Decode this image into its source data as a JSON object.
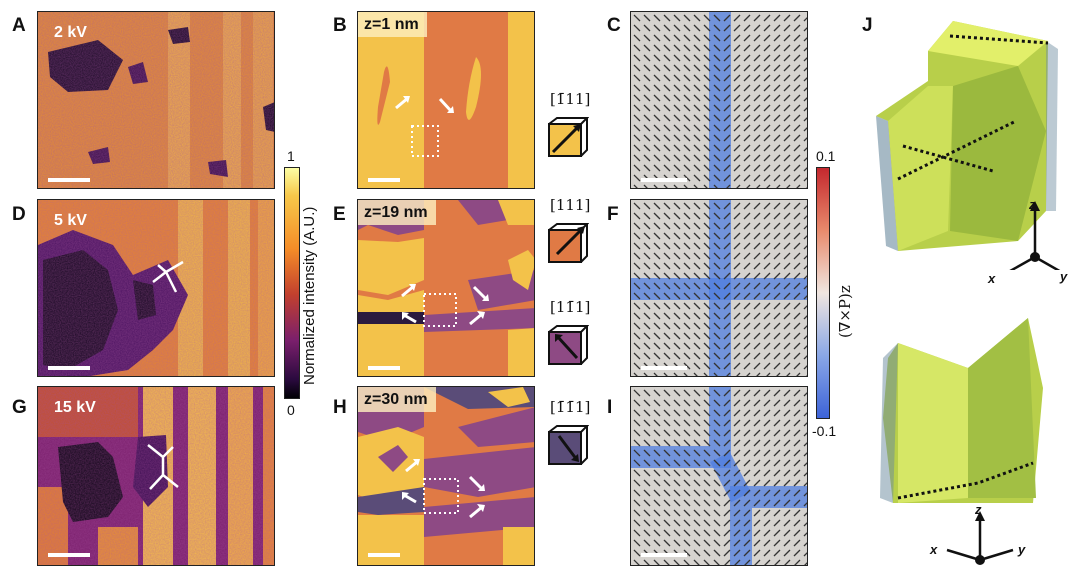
{
  "panels": {
    "A": {
      "label": "A",
      "tag": "2 kV"
    },
    "B": {
      "label": "B",
      "tag": "z=1 nm"
    },
    "C": {
      "label": "C"
    },
    "D": {
      "label": "D",
      "tag": "5 kV"
    },
    "E": {
      "label": "E",
      "tag": "z=19 nm"
    },
    "F": {
      "label": "F"
    },
    "G": {
      "label": "G",
      "tag": "15 kV"
    },
    "H": {
      "label": "H",
      "tag": "z=30 nm"
    },
    "I": {
      "label": "I"
    },
    "J": {
      "label": "J"
    }
  },
  "intensity_colorbar": {
    "title": "Normalized intensity (A.U.)",
    "max": "1",
    "min": "0"
  },
  "curl_colorbar": {
    "title": "(∇×P)z",
    "max": "0.1",
    "min": "-0.1"
  },
  "directions": [
    {
      "label": "[1̅ 11]",
      "display": "[1̄11]",
      "color": "#f3c24a"
    },
    {
      "label": "[111]",
      "display": "[111]",
      "color": "#e07a45"
    },
    {
      "label": "[11̅ 1]",
      "display": "[11̄1]",
      "color": "#8e4a84"
    },
    {
      "label": "[1̄1̄1]",
      "display": "[1̄1̄1]",
      "color": "#5a4c78"
    }
  ],
  "axes": {
    "x": "x",
    "y": "y",
    "z": "z"
  },
  "colors": {
    "inferno_dark": "#1a0b24",
    "inferno_purple": "#6b1a6e",
    "inferno_orange": "#e8842a",
    "inferno_yellow": "#f7c84a",
    "curl_blue": "#4f7de0",
    "curl_red": "#c5282e"
  }
}
